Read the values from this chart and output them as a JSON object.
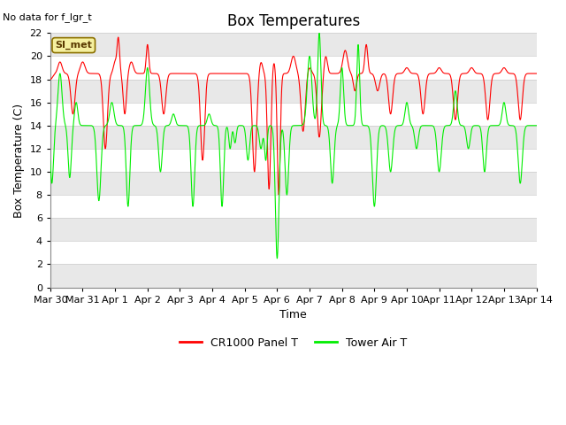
{
  "title": "Box Temperatures",
  "xlabel": "Time",
  "ylabel": "Box Temperature (C)",
  "no_data_label": "No data for f_lgr_t",
  "site_label": "SI_met",
  "ylim": [
    0,
    22
  ],
  "yticks": [
    0,
    2,
    4,
    6,
    8,
    10,
    12,
    14,
    16,
    18,
    20,
    22
  ],
  "line1_color": "#ff0000",
  "line2_color": "#00ee00",
  "legend_line1": "CR1000 Panel T",
  "legend_line2": "Tower Air T",
  "title_fontsize": 12,
  "axis_fontsize": 9,
  "tick_fontsize": 8,
  "x_start_days": 0,
  "x_end_days": 15,
  "xtick_labels": [
    "Mar 30",
    "Mar 31",
    "Apr 1",
    "Apr 2",
    "Apr 3",
    "Apr 4",
    "Apr 5",
    "Apr 6",
    "Apr 7",
    "Apr 8",
    "Apr 9",
    "Apr 10",
    "Apr 11",
    "Apr 12",
    "Apr 13",
    "Apr 14"
  ],
  "xtick_positions": [
    0,
    1,
    2,
    3,
    4,
    5,
    6,
    7,
    8,
    9,
    10,
    11,
    12,
    13,
    14,
    15
  ],
  "band_colors": [
    "#ffffff",
    "#e8e8e8"
  ],
  "figure_bg": "#ffffff",
  "grid_color": "#cccccc"
}
